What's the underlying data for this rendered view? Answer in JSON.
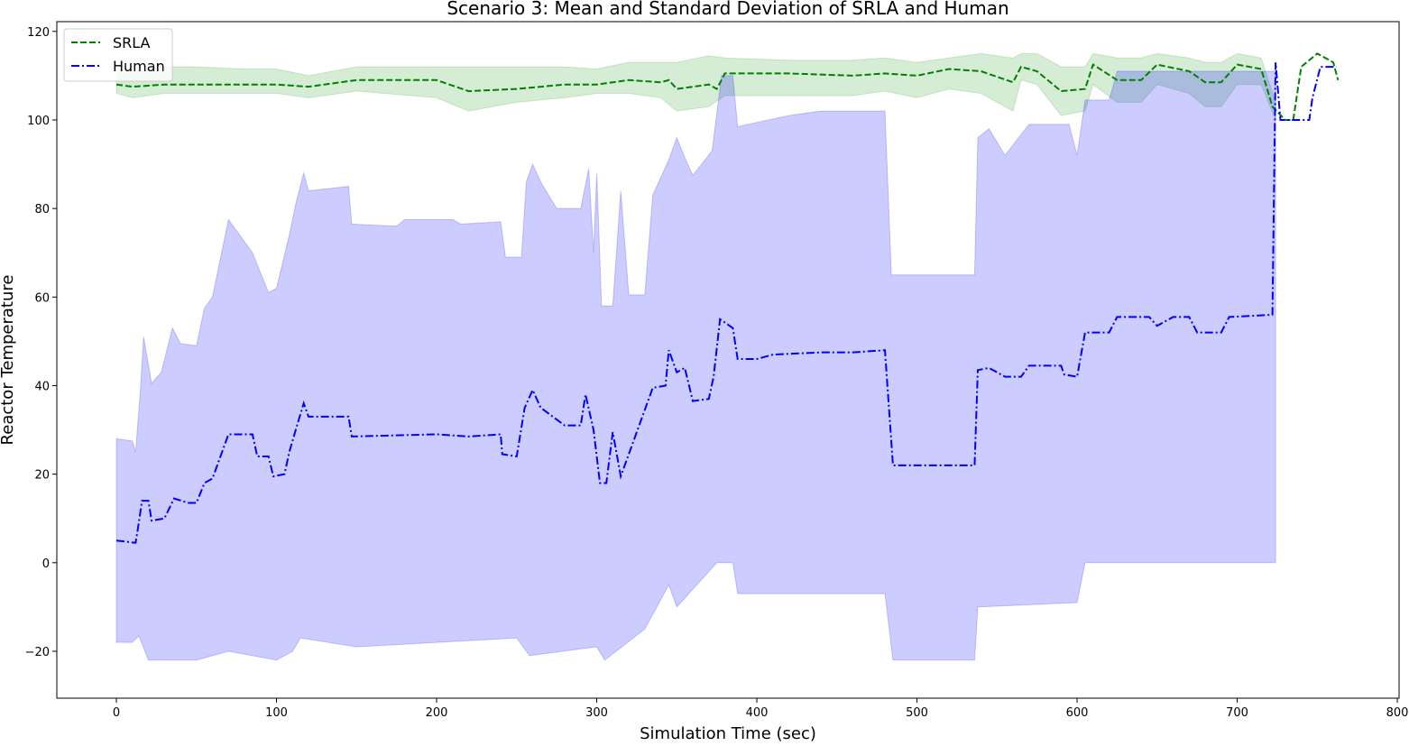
{
  "chart_data": {
    "type": "line",
    "title": "Scenario 3: Mean and Standard Deviation of SRLA and Human",
    "x_label": "Simulation Time (sec)",
    "y_label": "Reactor Temperature",
    "xlim": [
      -37.2,
      801.1
    ],
    "ylim": [
      -30.6,
      122.2
    ],
    "xticks": [
      0,
      100,
      200,
      300,
      400,
      500,
      600,
      700,
      800
    ],
    "yticks": [
      {
        "value": -20,
        "label": "−20"
      },
      0,
      20,
      40,
      60,
      80,
      100,
      120
    ],
    "legend": "upper-left",
    "series": [
      {
        "name": "SRLA",
        "color": "#008000",
        "band_color": "#2ca02c",
        "dash": "dashed",
        "x": [
          0,
          10,
          30,
          50,
          80,
          100,
          120,
          150,
          200,
          220,
          250,
          280,
          300,
          320,
          340,
          345,
          350,
          370,
          375,
          380,
          420,
          460,
          480,
          500,
          520,
          540,
          560,
          565,
          575,
          590,
          605,
          610,
          625,
          640,
          650,
          670,
          680,
          690,
          700,
          715,
          722,
          730,
          735,
          740,
          750,
          760,
          763
        ],
        "values": [
          108,
          107.5,
          108,
          108,
          108,
          108,
          107.5,
          109,
          109,
          106.5,
          107,
          108,
          108,
          109,
          108.5,
          109,
          107,
          108,
          107,
          110.5,
          110.5,
          110,
          110.5,
          110,
          111.5,
          111,
          108.5,
          112,
          111,
          106.5,
          107,
          112.5,
          109,
          109,
          112.5,
          111,
          108.5,
          108.5,
          112.5,
          111.5,
          103,
          100,
          100,
          112,
          115,
          113,
          109
        ],
        "upper": {
          "x": [
            0,
            10,
            30,
            50,
            80,
            100,
            120,
            150,
            200,
            220,
            250,
            280,
            300,
            320,
            340,
            350,
            370,
            380,
            420,
            460,
            480,
            500,
            520,
            540,
            560,
            565,
            575,
            590,
            605,
            610,
            625,
            640,
            650,
            670,
            680,
            690,
            700,
            715,
            724
          ],
          "values": [
            110.5,
            111,
            112,
            112,
            111.5,
            111.5,
            110,
            112,
            112,
            112,
            112,
            112,
            111.5,
            113,
            113,
            113,
            114.5,
            114,
            113.5,
            113.5,
            114,
            113,
            114,
            115,
            114,
            115,
            115,
            112,
            112,
            115,
            114,
            114,
            115,
            114,
            113,
            113,
            115,
            114,
            104
          ]
        },
        "lower": {
          "x": [
            0,
            10,
            30,
            50,
            80,
            100,
            120,
            150,
            200,
            220,
            250,
            280,
            300,
            320,
            340,
            350,
            370,
            380,
            420,
            460,
            480,
            500,
            520,
            540,
            560,
            565,
            575,
            590,
            605,
            610,
            625,
            640,
            650,
            670,
            680,
            690,
            700,
            715,
            724
          ],
          "values": [
            106,
            105,
            106,
            106,
            106,
            106,
            105,
            106.5,
            105,
            102,
            104,
            105,
            106,
            106,
            105,
            102,
            103,
            105.5,
            105.5,
            105.5,
            106.5,
            105,
            107,
            106,
            102,
            109,
            108,
            101,
            102,
            108,
            104,
            104,
            108,
            106,
            103,
            103,
            108,
            108,
            100
          ]
        }
      },
      {
        "name": "Human",
        "color": "#0000ff",
        "band_color": "#0000ff",
        "dash": "dashdot",
        "x": [
          0,
          12,
          14,
          16,
          20,
          22,
          30,
          36,
          45,
          50,
          55,
          60,
          70,
          85,
          88,
          95,
          98,
          105,
          108,
          112,
          117,
          120,
          145,
          147,
          200,
          220,
          240,
          241,
          250,
          255,
          260,
          265,
          280,
          290,
          293,
          298,
          302,
          306,
          310,
          315,
          325,
          335,
          343,
          345,
          350,
          355,
          360,
          370,
          373,
          377,
          385,
          388,
          400,
          410,
          440,
          460,
          480,
          485,
          536,
          538,
          545,
          555,
          565,
          570,
          590,
          592,
          600,
          605,
          620,
          625,
          645,
          650,
          660,
          670,
          675,
          690,
          695,
          722,
          724,
          727,
          745,
          747,
          752,
          762
        ],
        "values": [
          5,
          4.5,
          9,
          14,
          14,
          9.5,
          10,
          14.5,
          13.5,
          13.5,
          18,
          19,
          29,
          29,
          24,
          24,
          19.5,
          20,
          25,
          30,
          36,
          33,
          33,
          28.5,
          29,
          28.5,
          29,
          24.5,
          24,
          35,
          39,
          35,
          31,
          31,
          38,
          30,
          18,
          18,
          29.5,
          19.5,
          29.5,
          39.5,
          40,
          48,
          43,
          44,
          36.5,
          37,
          42,
          55,
          53,
          46,
          46,
          47,
          47.5,
          47.5,
          48,
          22,
          22,
          43.5,
          44,
          42,
          42,
          44.5,
          44.5,
          42.5,
          42,
          52,
          52,
          55.5,
          55.5,
          53.5,
          55.5,
          55.5,
          52,
          52,
          55.5,
          56,
          113,
          100,
          100,
          105,
          112,
          112
        ],
        "upper": {
          "x": [
            0,
            10,
            12,
            15,
            17,
            22,
            28,
            35,
            40,
            50,
            55,
            60,
            70,
            85,
            95,
            100,
            108,
            112,
            117,
            120,
            145,
            147,
            175,
            180,
            210,
            215,
            240,
            243,
            253,
            256,
            260,
            265,
            275,
            290,
            295,
            298,
            300,
            303,
            310,
            315,
            320,
            330,
            335,
            345,
            350,
            355,
            360,
            372,
            378,
            385,
            388,
            420,
            440,
            480,
            484,
            536,
            538,
            545,
            555,
            570,
            595,
            600,
            605,
            620,
            625,
            700,
            724
          ],
          "values": [
            28,
            27.5,
            25,
            39,
            51,
            40.5,
            43,
            53,
            49.5,
            49,
            57.5,
            60,
            77.5,
            70,
            61,
            62,
            74,
            81,
            88,
            84,
            85,
            76.5,
            76,
            77.5,
            77.5,
            76.5,
            77,
            69,
            69,
            86,
            90,
            86,
            80,
            80,
            89,
            70,
            88,
            58,
            58,
            84,
            60.5,
            60.5,
            83,
            91,
            96,
            91.5,
            87.5,
            93,
            110,
            110,
            98.5,
            101,
            102,
            102,
            65,
            65,
            96,
            98,
            92,
            99,
            99,
            92,
            104.5,
            104.5,
            111,
            111,
            111
          ]
        },
        "lower": {
          "x": [
            0,
            10,
            14,
            20,
            50,
            70,
            100,
            110,
            115,
            150,
            250,
            258,
            300,
            305,
            330,
            345,
            350,
            375,
            385,
            388,
            480,
            485,
            536,
            538,
            600,
            605,
            724
          ],
          "values": [
            -18,
            -18,
            -16.5,
            -22,
            -22,
            -20,
            -22,
            -20,
            -17,
            -19,
            -17,
            -21,
            -19,
            -22,
            -15,
            -5,
            -10,
            0,
            0,
            -7,
            -7,
            -22,
            -22,
            -10,
            -9,
            0,
            0
          ]
        }
      }
    ]
  }
}
